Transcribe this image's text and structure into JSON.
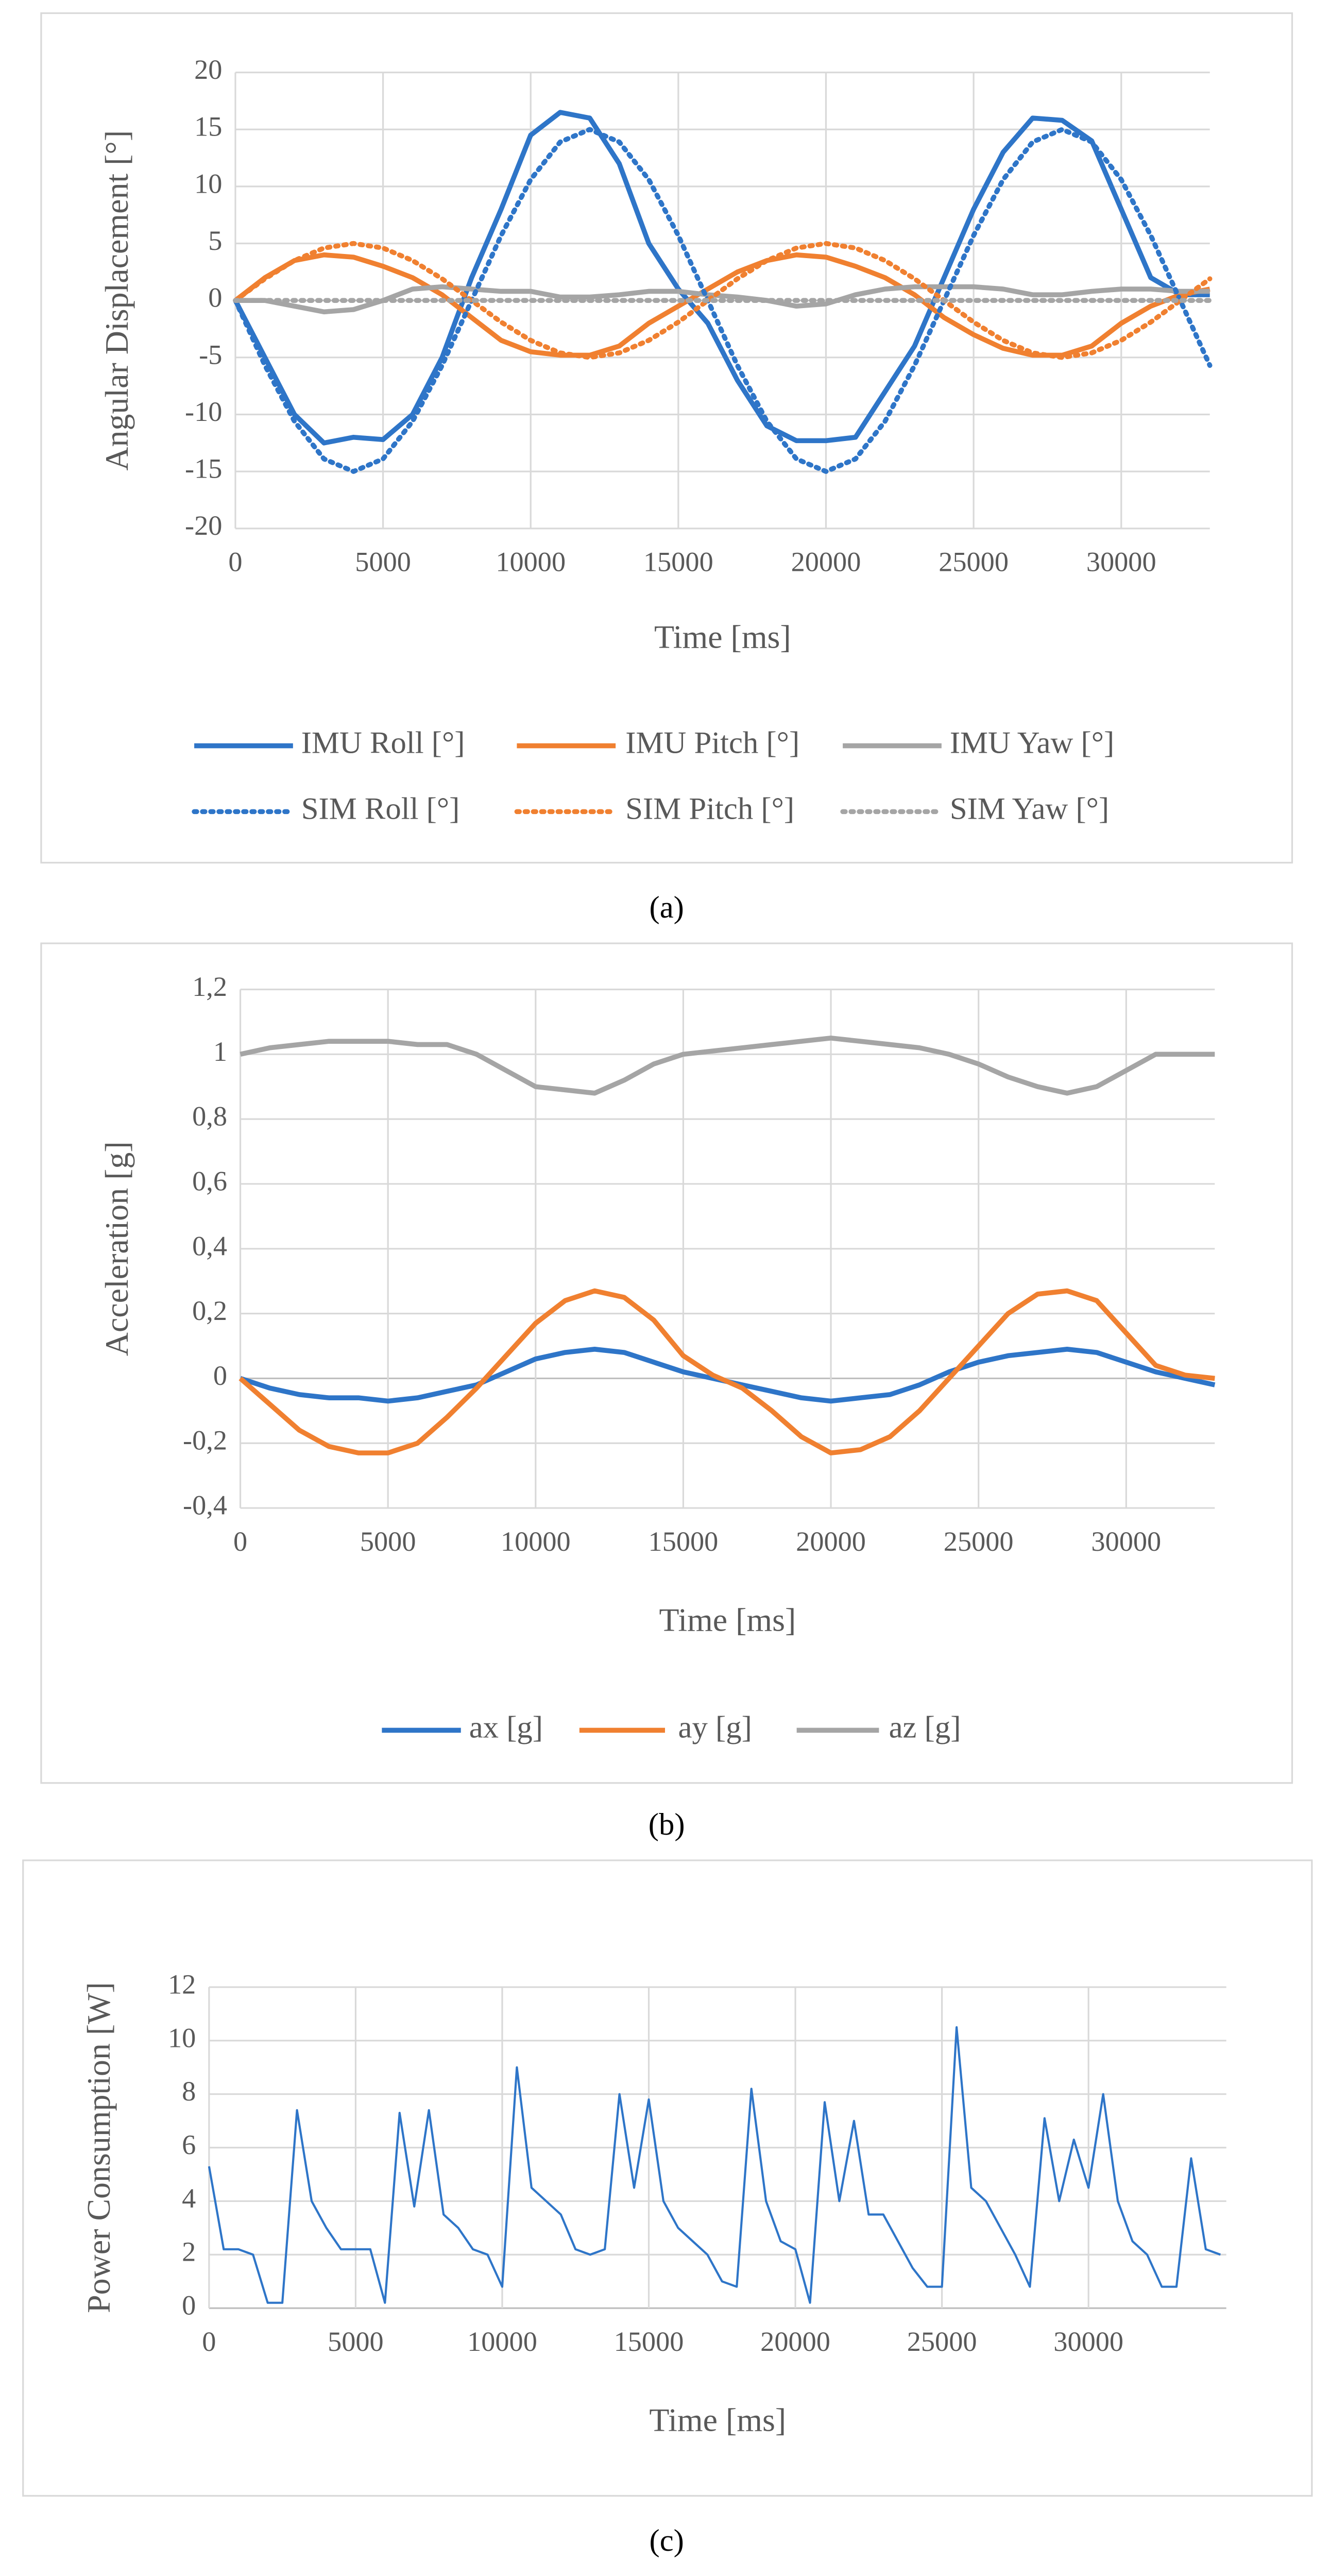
{
  "chart_data": [
    {
      "type": "line",
      "caption": "(a)",
      "xlabel": "Time [ms]",
      "ylabel": "Angular Displacement [°]",
      "xlim": [
        0,
        33000
      ],
      "ylim": [
        -20,
        20
      ],
      "xticks": [
        0,
        5000,
        10000,
        15000,
        20000,
        25000,
        30000
      ],
      "yticks": [
        -20,
        -15,
        -10,
        -5,
        0,
        5,
        10,
        15,
        20
      ],
      "grid": true,
      "legend": "bottom",
      "x": [
        0,
        1000,
        2000,
        3000,
        4000,
        5000,
        6000,
        7000,
        8000,
        9000,
        10000,
        11000,
        12000,
        13000,
        14000,
        15000,
        16000,
        17000,
        18000,
        19000,
        20000,
        21000,
        22000,
        23000,
        24000,
        25000,
        26000,
        27000,
        28000,
        29000,
        30000,
        31000,
        32000,
        33000
      ],
      "series": [
        {
          "name": "IMU Roll [°]",
          "color": "#2e75c8",
          "style": "solid",
          "values": [
            0,
            -5,
            -10,
            -12.5,
            -12,
            -12.2,
            -10,
            -5,
            2,
            8,
            14.5,
            16.5,
            16,
            12,
            5,
            1,
            -2,
            -7,
            -11,
            -12.3,
            -12.3,
            -12,
            -8,
            -4,
            2,
            8,
            13,
            16,
            15.8,
            14,
            8,
            2,
            0.5,
            0.5
          ]
        },
        {
          "name": "IMU Pitch [°]",
          "color": "#f08030",
          "style": "solid",
          "values": [
            0,
            2,
            3.5,
            4,
            3.8,
            3,
            2,
            0.5,
            -1.5,
            -3.5,
            -4.5,
            -4.8,
            -4.8,
            -4,
            -2,
            -0.5,
            1,
            2.5,
            3.5,
            4,
            3.8,
            3,
            2,
            0.5,
            -1.5,
            -3,
            -4.2,
            -4.8,
            -4.8,
            -4,
            -2,
            -0.5,
            0.5,
            1
          ]
        },
        {
          "name": "IMU Yaw [°]",
          "color": "#a5a5a5",
          "style": "solid",
          "values": [
            0,
            0,
            -0.5,
            -1,
            -0.8,
            0,
            1,
            1.2,
            1,
            0.8,
            0.8,
            0.3,
            0.3,
            0.5,
            0.8,
            0.8,
            0.5,
            0.3,
            0,
            -0.5,
            -0.3,
            0.5,
            1,
            1.2,
            1.2,
            1.2,
            1,
            0.5,
            0.5,
            0.8,
            1,
            1,
            0.8,
            0.8
          ]
        },
        {
          "name": "SIM Roll [°]",
          "color": "#2e75c8",
          "style": "dotted",
          "values": [
            0,
            -5.7,
            -10.6,
            -13.9,
            -15,
            -13.9,
            -10.6,
            -5.7,
            0,
            5.7,
            10.6,
            13.9,
            15,
            13.9,
            10.6,
            5.7,
            0,
            -5.7,
            -10.6,
            -13.9,
            -15,
            -13.9,
            -10.6,
            -5.7,
            0,
            5.7,
            10.6,
            13.9,
            15,
            13.9,
            10.6,
            5.7,
            0,
            -5.7
          ]
        },
        {
          "name": "SIM Pitch [°]",
          "color": "#f08030",
          "style": "dotted",
          "values": [
            0,
            1.9,
            3.5,
            4.6,
            5,
            4.6,
            3.5,
            1.9,
            0,
            -1.9,
            -3.5,
            -4.6,
            -5,
            -4.6,
            -3.5,
            -1.9,
            0,
            1.9,
            3.5,
            4.6,
            5,
            4.6,
            3.5,
            1.9,
            0,
            -1.9,
            -3.5,
            -4.6,
            -5,
            -4.6,
            -3.5,
            -1.9,
            0,
            1.9
          ]
        },
        {
          "name": "SIM Yaw [°]",
          "color": "#a5a5a5",
          "style": "dotted",
          "values": [
            0,
            0,
            0,
            0,
            0,
            0,
            0,
            0,
            0,
            0,
            0,
            0,
            0,
            0,
            0,
            0,
            0,
            0,
            0,
            0,
            0,
            0,
            0,
            0,
            0,
            0,
            0,
            0,
            0,
            0,
            0,
            0,
            0,
            0
          ]
        }
      ]
    },
    {
      "type": "line",
      "caption": "(b)",
      "xlabel": "Time [ms]",
      "ylabel": "Acceleration [g]",
      "xlim": [
        0,
        33000
      ],
      "ylim": [
        -0.4,
        1.2
      ],
      "xticks": [
        0,
        5000,
        10000,
        15000,
        20000,
        25000,
        30000
      ],
      "yticks": [
        {
          "value": -0.4,
          "label": "-0,4"
        },
        {
          "value": -0.2,
          "label": "-0,2"
        },
        0,
        {
          "value": 0.2,
          "label": "0,2"
        },
        {
          "value": 0.4,
          "label": "0,4"
        },
        {
          "value": 0.6,
          "label": "0,6"
        },
        {
          "value": 0.8,
          "label": "0,8"
        },
        1,
        {
          "value": 1.2,
          "label": "1,2"
        }
      ],
      "grid": true,
      "legend": "bottom",
      "x": [
        0,
        1000,
        2000,
        3000,
        4000,
        5000,
        6000,
        7000,
        8000,
        9000,
        10000,
        11000,
        12000,
        13000,
        14000,
        15000,
        16000,
        17000,
        18000,
        19000,
        20000,
        21000,
        22000,
        23000,
        24000,
        25000,
        26000,
        27000,
        28000,
        29000,
        30000,
        31000,
        32000,
        33000
      ],
      "series": [
        {
          "name": "ax [g]",
          "color": "#2e75c8",
          "style": "solid",
          "values": [
            0,
            -0.03,
            -0.05,
            -0.06,
            -0.06,
            -0.07,
            -0.06,
            -0.04,
            -0.02,
            0.02,
            0.06,
            0.08,
            0.09,
            0.08,
            0.05,
            0.02,
            0,
            -0.02,
            -0.04,
            -0.06,
            -0.07,
            -0.06,
            -0.05,
            -0.02,
            0.02,
            0.05,
            0.07,
            0.08,
            0.09,
            0.08,
            0.05,
            0.02,
            0,
            -0.02
          ]
        },
        {
          "name": "ay [g]",
          "color": "#f08030",
          "style": "solid",
          "values": [
            0,
            -0.08,
            -0.16,
            -0.21,
            -0.23,
            -0.23,
            -0.2,
            -0.12,
            -0.03,
            0.07,
            0.17,
            0.24,
            0.27,
            0.25,
            0.18,
            0.07,
            0.01,
            -0.03,
            -0.1,
            -0.18,
            -0.23,
            -0.22,
            -0.18,
            -0.1,
            0,
            0.1,
            0.2,
            0.26,
            0.27,
            0.24,
            0.14,
            0.04,
            0.01,
            0
          ]
        },
        {
          "name": "az [g]",
          "color": "#a5a5a5",
          "style": "solid",
          "values": [
            1,
            1.02,
            1.03,
            1.04,
            1.04,
            1.04,
            1.03,
            1.03,
            1,
            0.95,
            0.9,
            0.89,
            0.88,
            0.92,
            0.97,
            1,
            1.01,
            1.02,
            1.03,
            1.04,
            1.05,
            1.04,
            1.03,
            1.02,
            1,
            0.97,
            0.93,
            0.9,
            0.88,
            0.9,
            0.95,
            1,
            1,
            1
          ]
        }
      ]
    },
    {
      "type": "line",
      "caption": "(c)",
      "xlabel": "Time [ms]",
      "ylabel": "Power Consumption [W]",
      "xlim": [
        0,
        34700
      ],
      "ylim": [
        0,
        12
      ],
      "xticks": [
        0,
        5000,
        10000,
        15000,
        20000,
        25000,
        30000
      ],
      "yticks": [
        0,
        2,
        4,
        6,
        8,
        10,
        12
      ],
      "grid": true,
      "x": [
        0,
        500,
        1000,
        1500,
        2000,
        2500,
        3000,
        3500,
        4000,
        4500,
        5000,
        5500,
        6000,
        6500,
        7000,
        7500,
        8000,
        8500,
        9000,
        9500,
        10000,
        10500,
        11000,
        11500,
        12000,
        12500,
        13000,
        13500,
        14000,
        14500,
        15000,
        15500,
        16000,
        16500,
        17000,
        17500,
        18000,
        18500,
        19000,
        19500,
        20000,
        20500,
        21000,
        21500,
        22000,
        22500,
        23000,
        23500,
        24000,
        24500,
        25000,
        25500,
        26000,
        26500,
        27000,
        27500,
        28000,
        28500,
        29000,
        29500,
        30000,
        30500,
        31000,
        31500,
        32000,
        32500,
        33000,
        33500,
        34000,
        34500
      ],
      "series": [
        {
          "color": "#2e75c8",
          "style": "thin",
          "values": [
            5.3,
            2.2,
            2.2,
            2.0,
            0.2,
            0.2,
            7.4,
            4,
            3,
            2.2,
            2.2,
            2.2,
            0.2,
            7.3,
            3.8,
            7.4,
            3.5,
            3.0,
            2.2,
            2.0,
            0.8,
            9.0,
            4.5,
            4.0,
            3.5,
            2.2,
            2.0,
            2.2,
            8.0,
            4.5,
            7.8,
            4.0,
            3.0,
            2.5,
            2.0,
            1.0,
            0.8,
            8.2,
            4.0,
            2.5,
            2.2,
            0.2,
            7.7,
            4.0,
            7.0,
            3.5,
            3.5,
            2.5,
            1.5,
            0.8,
            0.8,
            10.5,
            4.5,
            4.0,
            3.0,
            2.0,
            0.8,
            7.1,
            4.0,
            6.3,
            4.5,
            8.0,
            4.0,
            2.5,
            2.0,
            0.8,
            0.8,
            5.6,
            2.2,
            2.0
          ]
        }
      ]
    }
  ]
}
